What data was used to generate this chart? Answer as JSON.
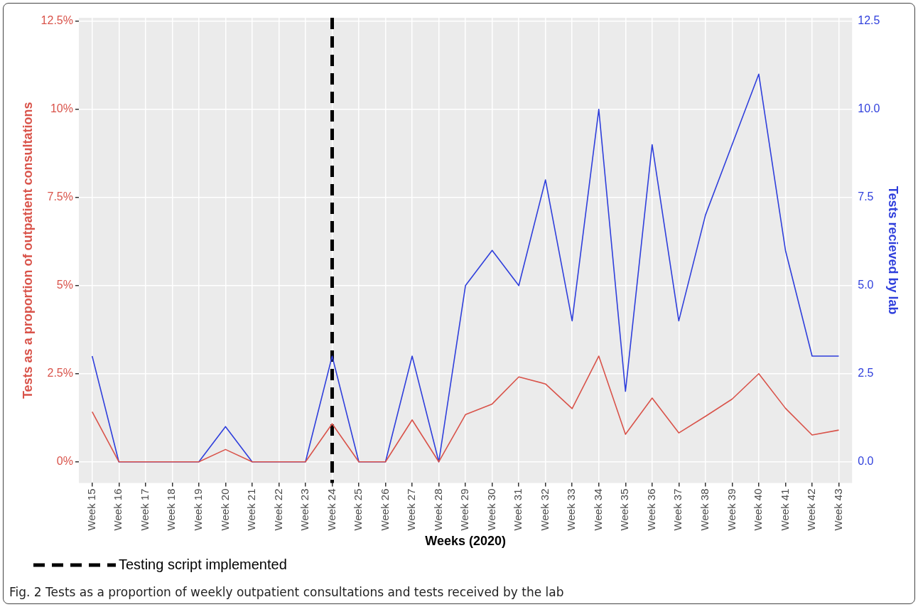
{
  "chart_data": {
    "type": "line",
    "xlabel": "Weeks (2020)",
    "ylabel": "Tests as a proportion of outpatient consultations",
    "y2label": "Tests recieved by lab",
    "categories": [
      "Week 15",
      "Week 16",
      "Week 17",
      "Week 18",
      "Week 19",
      "Week 20",
      "Week 21",
      "Week 22",
      "Week 23",
      "Week 24",
      "Week 25",
      "Week 26",
      "Week 27",
      "Week 28",
      "Week 29",
      "Week 30",
      "Week 31",
      "Week 32",
      "Week 33",
      "Week 34",
      "Week 35",
      "Week 36",
      "Week 37",
      "Week 38",
      "Week 39",
      "Week 40",
      "Week 41",
      "Week 42",
      "Week 43"
    ],
    "series": [
      {
        "color": "#d9534a",
        "values": [
          1.42,
          0,
          0,
          0,
          0,
          0.35,
          0,
          0,
          0,
          1.08,
          0,
          0,
          1.19,
          0,
          1.34,
          1.64,
          2.41,
          2.21,
          1.51,
          3.0,
          0.78,
          1.81,
          0.82,
          1.29,
          1.78,
          2.5,
          1.52,
          0.76,
          0.9
        ]
      },
      {
        "color": "#2f3fdc",
        "axis": "y2",
        "values": [
          3,
          0,
          0,
          0,
          0,
          1,
          0,
          0,
          0,
          3,
          0,
          0,
          3,
          0,
          5,
          6,
          5,
          8,
          4,
          10,
          2,
          9,
          4,
          7,
          9,
          11,
          6,
          3,
          3
        ]
      }
    ],
    "ylim": [
      -0.6,
      12.6
    ],
    "yticks": [
      {
        "value": 0,
        "label": "0%"
      },
      {
        "value": 2.5,
        "label": "2.5%"
      },
      {
        "value": 5,
        "label": "5%"
      },
      {
        "value": 7.5,
        "label": "7.5%"
      },
      {
        "value": 10,
        "label": "10%"
      },
      {
        "value": 12.5,
        "label": "12.5%"
      }
    ],
    "y2lim": [
      -0.6,
      12.6
    ],
    "y2ticks": [
      {
        "value": 0,
        "label": "0.0"
      },
      {
        "value": 2.5,
        "label": "2.5"
      },
      {
        "value": 5,
        "label": "5.0"
      },
      {
        "value": 7.5,
        "label": "7.5"
      },
      {
        "value": 10,
        "label": "10.0"
      },
      {
        "value": 12.5,
        "label": "12.5"
      }
    ],
    "ref_lines": [
      {
        "axis": "x",
        "value": "Week 24",
        "label": "Testing script implemented",
        "color": "#000000",
        "line_style": "dashed"
      }
    ],
    "grid": true,
    "legend": "bottom left",
    "marker": "none",
    "line_style": "solid",
    "annotations": [
      "Fig. 2 Tests as a proportion of weekly outpatient consultations and tests received by the lab"
    ]
  }
}
